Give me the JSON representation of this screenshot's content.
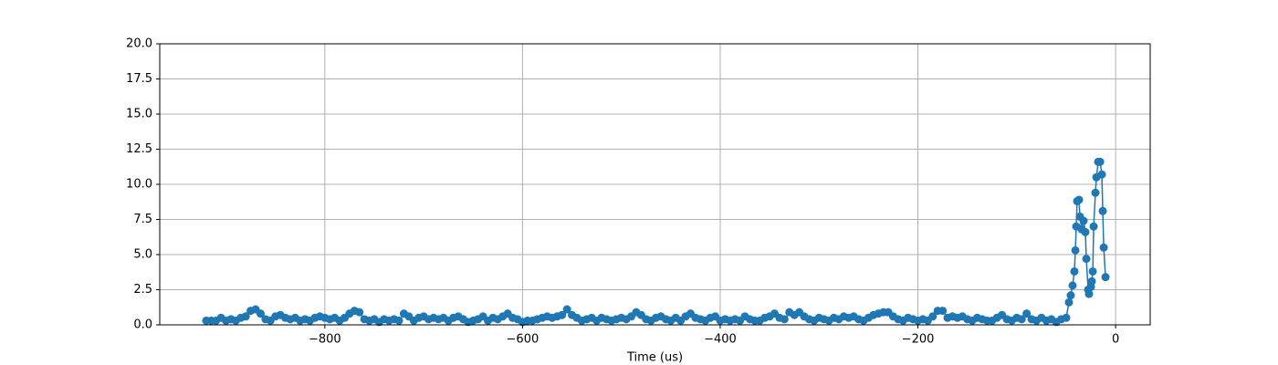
{
  "chart_data": {
    "type": "line",
    "xlabel": "Time (us)",
    "color": "#1f77b4",
    "grid": true,
    "xlim": [
      -967,
      35
    ],
    "ylim": [
      0,
      20
    ],
    "xticks": [
      {
        "value": -800,
        "label": "−800"
      },
      {
        "value": -600,
        "label": "−600"
      },
      {
        "value": -400,
        "label": "−400"
      },
      {
        "value": -200,
        "label": "−200"
      },
      0
    ],
    "yticks": [
      {
        "value": 0,
        "label": "0.0"
      },
      2.5,
      {
        "value": 5,
        "label": "5.0"
      },
      7.5,
      {
        "value": 10,
        "label": "10.0"
      },
      12.5,
      {
        "value": 15,
        "label": "15.0"
      },
      17.5,
      {
        "value": 20,
        "label": "20.0"
      }
    ],
    "x": [
      -920,
      -915,
      -910,
      -905,
      -900,
      -895,
      -890,
      -885,
      -880,
      -875,
      -870,
      -865,
      -860,
      -855,
      -850,
      -845,
      -840,
      -835,
      -830,
      -825,
      -820,
      -815,
      -810,
      -805,
      -800,
      -795,
      -790,
      -785,
      -780,
      -775,
      -770,
      -765,
      -760,
      -755,
      -750,
      -745,
      -740,
      -735,
      -730,
      -725,
      -720,
      -715,
      -710,
      -705,
      -700,
      -695,
      -690,
      -685,
      -680,
      -675,
      -670,
      -665,
      -660,
      -655,
      -650,
      -645,
      -640,
      -635,
      -630,
      -625,
      -620,
      -615,
      -610,
      -605,
      -600,
      -595,
      -590,
      -585,
      -580,
      -575,
      -570,
      -565,
      -560,
      -555,
      -550,
      -545,
      -540,
      -535,
      -530,
      -525,
      -520,
      -515,
      -510,
      -505,
      -500,
      -495,
      -490,
      -485,
      -480,
      -475,
      -470,
      -465,
      -460,
      -455,
      -450,
      -445,
      -440,
      -435,
      -430,
      -425,
      -420,
      -415,
      -410,
      -405,
      -400,
      -395,
      -390,
      -385,
      -380,
      -375,
      -370,
      -365,
      -360,
      -355,
      -350,
      -345,
      -340,
      -335,
      -330,
      -325,
      -320,
      -315,
      -310,
      -305,
      -300,
      -295,
      -290,
      -285,
      -280,
      -275,
      -270,
      -265,
      -260,
      -255,
      -250,
      -245,
      -240,
      -235,
      -230,
      -225,
      -220,
      -215,
      -210,
      -205,
      -200,
      -195,
      -190,
      -185,
      -180,
      -175,
      -170,
      -165,
      -160,
      -155,
      -150,
      -145,
      -140,
      -135,
      -130,
      -125,
      -120,
      -115,
      -110,
      -105,
      -100,
      -95,
      -90,
      -85,
      -80,
      -75,
      -70,
      -65,
      -60,
      -55,
      -50,
      -47.2,
      -45.4,
      -43.5,
      -41.7,
      -40.7,
      -39.8,
      -38.9,
      -37,
      -36.1,
      -34.3,
      -32.4,
      -30.6,
      -29.6,
      -27.8,
      -26.9,
      -25,
      -24.1,
      -23.1,
      -22.2,
      -20.4,
      -19.4,
      -17.6,
      -15.7,
      -13.9,
      -13,
      -12,
      -10.2
    ],
    "values": [
      0.3,
      0.3,
      0.3,
      0.5,
      0.3,
      0.4,
      0.3,
      0.5,
      0.6,
      1.0,
      1.1,
      0.8,
      0.4,
      0.3,
      0.6,
      0.7,
      0.5,
      0.4,
      0.5,
      0.3,
      0.4,
      0.3,
      0.5,
      0.6,
      0.5,
      0.4,
      0.5,
      0.3,
      0.5,
      0.8,
      1.0,
      0.9,
      0.4,
      0.3,
      0.4,
      0.2,
      0.4,
      0.3,
      0.4,
      0.3,
      0.8,
      0.6,
      0.3,
      0.5,
      0.6,
      0.4,
      0.5,
      0.4,
      0.5,
      0.3,
      0.5,
      0.6,
      0.4,
      0.2,
      0.3,
      0.4,
      0.6,
      0.3,
      0.5,
      0.4,
      0.6,
      0.8,
      0.5,
      0.4,
      0.2,
      0.3,
      0.3,
      0.4,
      0.5,
      0.6,
      0.5,
      0.6,
      0.7,
      1.1,
      0.7,
      0.5,
      0.3,
      0.4,
      0.5,
      0.3,
      0.5,
      0.4,
      0.3,
      0.4,
      0.5,
      0.4,
      0.6,
      0.9,
      0.7,
      0.4,
      0.3,
      0.5,
      0.6,
      0.4,
      0.3,
      0.5,
      0.3,
      0.6,
      0.8,
      0.5,
      0.4,
      0.3,
      0.5,
      0.6,
      0.3,
      0.4,
      0.3,
      0.4,
      0.3,
      0.6,
      0.4,
      0.3,
      0.3,
      0.5,
      0.6,
      0.8,
      0.5,
      0.4,
      0.9,
      0.7,
      0.9,
      0.6,
      0.4,
      0.3,
      0.5,
      0.4,
      0.3,
      0.5,
      0.4,
      0.6,
      0.5,
      0.6,
      0.4,
      0.3,
      0.5,
      0.7,
      0.8,
      0.9,
      0.9,
      0.6,
      0.4,
      0.3,
      0.5,
      0.4,
      0.3,
      0.4,
      0.3,
      0.6,
      1.0,
      1.0,
      0.5,
      0.6,
      0.5,
      0.6,
      0.4,
      0.3,
      0.5,
      0.4,
      0.3,
      0.3,
      0.5,
      0.7,
      0.4,
      0.3,
      0.5,
      0.4,
      0.8,
      0.4,
      0.3,
      0.5,
      0.3,
      0.4,
      0.2,
      0.4,
      0.5,
      1.6,
      2.1,
      2.8,
      3.8,
      5.3,
      7.0,
      8.8,
      8.9,
      7.7,
      6.8,
      7.4,
      6.6,
      4.7,
      2.5,
      2.2,
      2.7,
      3.1,
      3.8,
      7.0,
      9.4,
      10.5,
      11.6,
      11.6,
      10.7,
      8.1,
      5.5,
      3.4
    ]
  }
}
